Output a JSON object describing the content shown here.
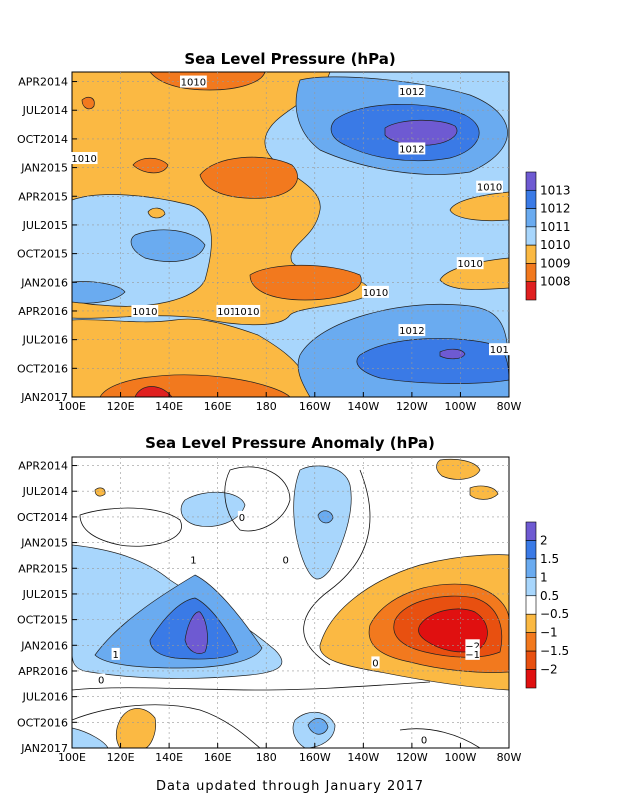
{
  "footer": "Data updated through January 2017",
  "chart_data": [
    {
      "type": "heatmap",
      "title": "Sea Level Pressure (hPa)",
      "x_ticks": [
        "100E",
        "120E",
        "140E",
        "160E",
        "180",
        "160W",
        "140W",
        "120W",
        "100W",
        "80W"
      ],
      "y_ticks": [
        "APR2014",
        "JUL2014",
        "OCT2014",
        "JAN2015",
        "APR2015",
        "JUL2015",
        "OCT2015",
        "JAN2016",
        "APR2016",
        "JUL2016",
        "OCT2016",
        "JAN2017"
      ],
      "grid": true,
      "legend_position": "right",
      "colorbar_levels": [
        "1013",
        "1012",
        "1011",
        "1010",
        "1009",
        "1008"
      ],
      "colorbar_colors": [
        "#6e5ad2",
        "#3a7ae6",
        "#6aabf0",
        "#a8d6fc",
        "#fbb943",
        "#f2791e",
        "#e02020"
      ],
      "contour_labels": [
        {
          "text": "1010",
          "x": "150E",
          "y": "APR2014"
        },
        {
          "text": "1012",
          "x": "120W",
          "y": "MAY2014"
        },
        {
          "text": "1012",
          "x": "120W",
          "y": "NOV2014"
        },
        {
          "text": "1010",
          "x": "105E",
          "y": "DEC2014"
        },
        {
          "text": "1010",
          "x": "88W",
          "y": "MAR2015"
        },
        {
          "text": "1010",
          "x": "96W",
          "y": "NOV2015"
        },
        {
          "text": "1010",
          "x": "135W",
          "y": "FEB2016"
        },
        {
          "text": "1010",
          "x": "130E",
          "y": "APR2016"
        },
        {
          "text": "1010",
          "x": "165E",
          "y": "APR2016"
        },
        {
          "text": "1010",
          "x": "172E",
          "y": "APR2016"
        },
        {
          "text": "1012",
          "x": "120W",
          "y": "JUN2016"
        },
        {
          "text": "101",
          "x": "84W",
          "y": "AUG2016"
        }
      ]
    },
    {
      "type": "heatmap",
      "title": "Sea Level Pressure Anomaly (hPa)",
      "x_ticks": [
        "100E",
        "120E",
        "140E",
        "160E",
        "180",
        "160W",
        "140W",
        "120W",
        "100W",
        "80W"
      ],
      "y_ticks": [
        "APR2014",
        "JUL2014",
        "OCT2014",
        "JAN2015",
        "APR2015",
        "JUL2015",
        "OCT2015",
        "JAN2016",
        "APR2016",
        "JUL2016",
        "OCT2016",
        "JAN2017"
      ],
      "grid": true,
      "legend_position": "right",
      "colorbar_levels": [
        "2",
        "1.5",
        "1",
        "0.5",
        "−0.5",
        "−1",
        "−1.5",
        "−2"
      ],
      "colorbar_colors": [
        "#6e5ad2",
        "#3a7ae6",
        "#6aabf0",
        "#a8d6fc",
        "#ffffff",
        "#fbb943",
        "#f2791e",
        "#e85010",
        "#e01010"
      ],
      "contour_labels": [
        {
          "text": "0",
          "x": "170E",
          "y": "OCT2014"
        },
        {
          "text": "1",
          "x": "150E",
          "y": "MAR2015"
        },
        {
          "text": "0",
          "x": "172W",
          "y": "MAR2015"
        },
        {
          "text": "1",
          "x": "118E",
          "y": "FEB2016"
        },
        {
          "text": "−2",
          "x": "95W",
          "y": "JAN2016"
        },
        {
          "text": "−1",
          "x": "95W",
          "y": "FEB2016"
        },
        {
          "text": "0",
          "x": "135W",
          "y": "MAR2016"
        },
        {
          "text": "0",
          "x": "112E",
          "y": "MAY2016"
        },
        {
          "text": "0",
          "x": "115W",
          "y": "DEC2016"
        }
      ]
    }
  ]
}
